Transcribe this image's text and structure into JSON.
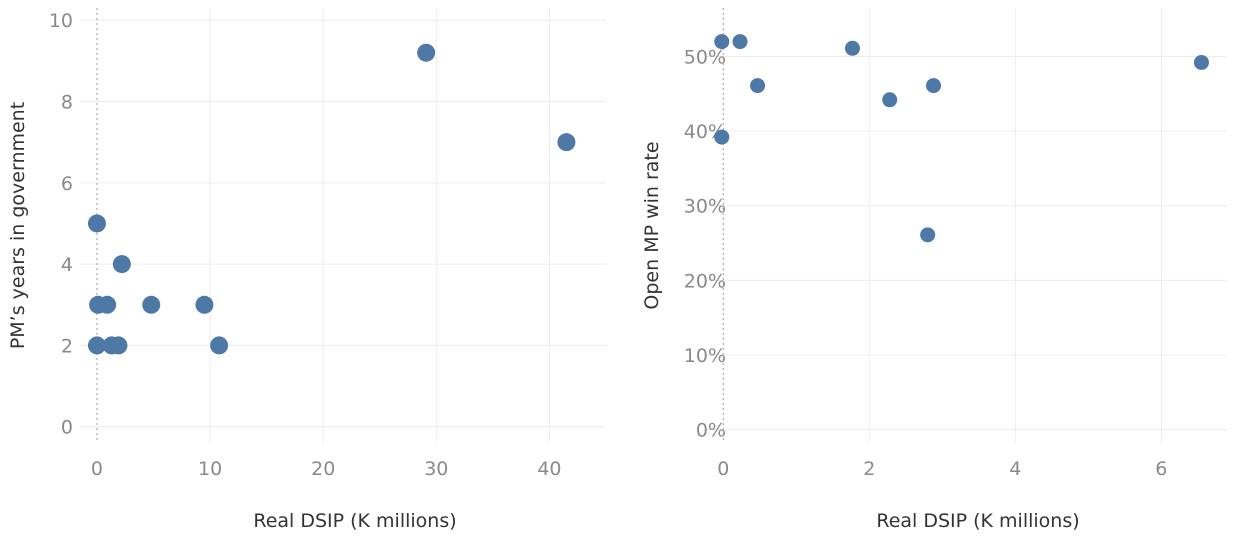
{
  "chart_data": [
    {
      "type": "scatter",
      "xlabel": "Real DSIP (K millions)",
      "ylabel": "PM’s years in government",
      "xlim": [
        -1.5,
        45
      ],
      "ylim": [
        -0.4,
        10.3
      ],
      "x_ticks": [
        0,
        10,
        20,
        30,
        40
      ],
      "y_ticks": [
        0,
        2,
        4,
        6,
        8,
        10
      ],
      "x_tick_labels": [
        "0",
        "10",
        "20",
        "30",
        "40"
      ],
      "y_tick_labels": [
        "0",
        "2",
        "4",
        "6",
        "8",
        "10"
      ],
      "zero_line": true,
      "grid": true,
      "marker_color": "#4e79a7",
      "points": [
        {
          "x": 29.1,
          "y": 9.2
        },
        {
          "x": 41.5,
          "y": 7.0
        },
        {
          "x": 0.0,
          "y": 5.0
        },
        {
          "x": 2.2,
          "y": 4.0
        },
        {
          "x": 0.1,
          "y": 3.0
        },
        {
          "x": 0.9,
          "y": 3.0
        },
        {
          "x": 4.8,
          "y": 3.0
        },
        {
          "x": 9.5,
          "y": 3.0
        },
        {
          "x": 0.0,
          "y": 2.0
        },
        {
          "x": 1.3,
          "y": 2.0
        },
        {
          "x": 1.9,
          "y": 2.0
        },
        {
          "x": 10.8,
          "y": 2.0
        }
      ]
    },
    {
      "type": "scatter",
      "xlabel": "Real DSIP (K millions)",
      "ylabel": "Open MP win rate",
      "xlim": [
        -0.25,
        6.9
      ],
      "ylim": [
        -0.018,
        0.565
      ],
      "x_ticks": [
        0,
        2,
        4,
        6
      ],
      "y_ticks": [
        0,
        0.1,
        0.2,
        0.3,
        0.4,
        0.5
      ],
      "x_tick_labels": [
        "0",
        "2",
        "4",
        "6"
      ],
      "y_tick_labels": [
        "0%",
        "10%",
        "20%",
        "30%",
        "40%",
        "50%"
      ],
      "zero_line": true,
      "grid": true,
      "marker_color": "#4e79a7",
      "points": [
        {
          "x": -0.02,
          "y": 0.52
        },
        {
          "x": 0.23,
          "y": 0.52
        },
        {
          "x": 1.77,
          "y": 0.511
        },
        {
          "x": 6.55,
          "y": 0.492
        },
        {
          "x": 0.47,
          "y": 0.461
        },
        {
          "x": 2.88,
          "y": 0.461
        },
        {
          "x": 2.28,
          "y": 0.442
        },
        {
          "x": -0.02,
          "y": 0.392
        },
        {
          "x": 2.8,
          "y": 0.261
        }
      ]
    }
  ]
}
